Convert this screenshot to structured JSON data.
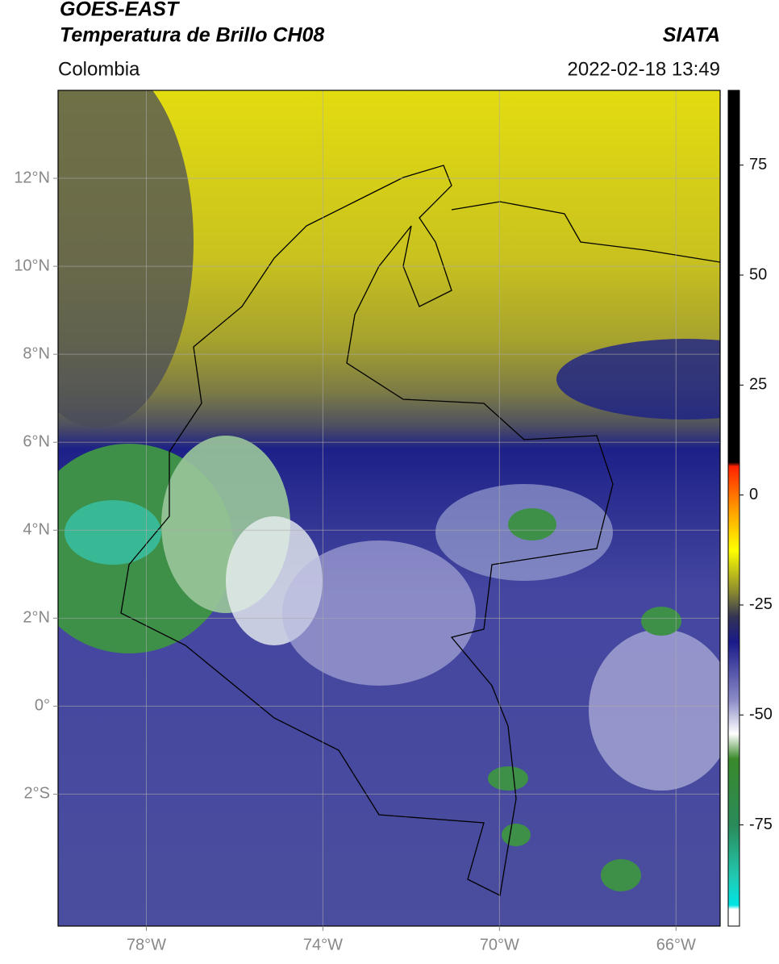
{
  "header": {
    "title1": "GOES-EAST",
    "title2": "Temperatura de Brillo CH08",
    "region": "Colombia",
    "source": "SIATA",
    "datetime": "2022-02-18 13:49"
  },
  "map": {
    "xlim": [
      -80,
      -65
    ],
    "ylim": [
      -5,
      14
    ],
    "xticks": [
      {
        "value": -78,
        "label": "78°W"
      },
      {
        "value": -74,
        "label": "74°W"
      },
      {
        "value": -70,
        "label": "70°W"
      },
      {
        "value": -66,
        "label": "66°W"
      }
    ],
    "yticks": [
      {
        "value": 12,
        "label": "12°N"
      },
      {
        "value": 10,
        "label": "10°N"
      },
      {
        "value": 8,
        "label": "8°N"
      },
      {
        "value": 6,
        "label": "6°N"
      },
      {
        "value": 4,
        "label": "4°N"
      },
      {
        "value": 2,
        "label": "2°N"
      },
      {
        "value": 0,
        "label": "0°"
      },
      {
        "value": -2,
        "label": "2°S"
      }
    ],
    "grid": true
  },
  "colorbar": {
    "lim": [
      -98,
      92
    ],
    "ticks": [
      75,
      50,
      25,
      0,
      -25,
      -50,
      -75
    ]
  }
}
